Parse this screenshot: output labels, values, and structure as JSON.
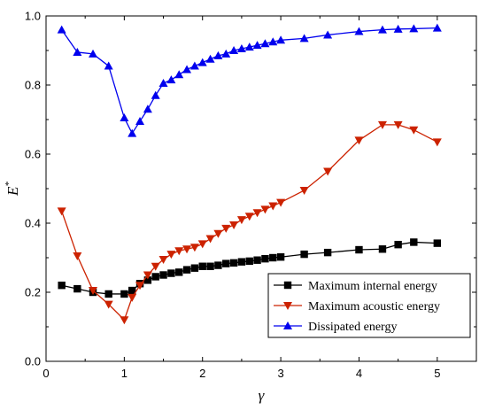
{
  "chart_data": {
    "type": "line",
    "title": "",
    "xlabel": "γ",
    "ylabel": "E",
    "ylabel_superscript": "*",
    "xlim": [
      0,
      5.5
    ],
    "ylim": [
      0,
      1.0
    ],
    "xticks": [
      0,
      1,
      2,
      3,
      4,
      5
    ],
    "yticks": [
      0.0,
      0.2,
      0.4,
      0.6,
      0.8,
      1.0
    ],
    "xtick_labels": [
      "0",
      "1",
      "2",
      "3",
      "4",
      "5"
    ],
    "ytick_labels": [
      "0.0",
      "0.2",
      "0.4",
      "0.6",
      "0.8",
      "1.0"
    ],
    "grid": false,
    "legend_position": "bottom-right",
    "series": [
      {
        "name": "Maximum internal energy",
        "color": "#000000",
        "marker": "square",
        "x": [
          0.2,
          0.4,
          0.6,
          0.8,
          1.0,
          1.1,
          1.2,
          1.3,
          1.4,
          1.5,
          1.6,
          1.7,
          1.8,
          1.9,
          2.0,
          2.1,
          2.2,
          2.3,
          2.4,
          2.5,
          2.6,
          2.7,
          2.8,
          2.9,
          3.0,
          3.3,
          3.6,
          4.0,
          4.3,
          4.5,
          4.7,
          5.0
        ],
        "y": [
          0.22,
          0.21,
          0.2,
          0.195,
          0.195,
          0.205,
          0.225,
          0.235,
          0.245,
          0.25,
          0.255,
          0.258,
          0.265,
          0.27,
          0.275,
          0.275,
          0.278,
          0.283,
          0.285,
          0.288,
          0.29,
          0.293,
          0.297,
          0.3,
          0.302,
          0.31,
          0.315,
          0.323,
          0.325,
          0.338,
          0.345,
          0.342
        ]
      },
      {
        "name": "Maximum acoustic energy",
        "color": "#cc2200",
        "marker": "triangle-down",
        "x": [
          0.2,
          0.4,
          0.6,
          0.8,
          1.0,
          1.1,
          1.2,
          1.3,
          1.4,
          1.5,
          1.6,
          1.7,
          1.8,
          1.9,
          2.0,
          2.1,
          2.2,
          2.3,
          2.4,
          2.5,
          2.6,
          2.7,
          2.8,
          2.9,
          3.0,
          3.3,
          3.6,
          4.0,
          4.3,
          4.5,
          4.7,
          5.0
        ],
        "y": [
          0.435,
          0.305,
          0.205,
          0.165,
          0.12,
          0.185,
          0.22,
          0.25,
          0.275,
          0.295,
          0.31,
          0.32,
          0.325,
          0.33,
          0.34,
          0.355,
          0.37,
          0.385,
          0.395,
          0.41,
          0.42,
          0.43,
          0.44,
          0.45,
          0.46,
          0.495,
          0.55,
          0.64,
          0.685,
          0.685,
          0.67,
          0.635
        ]
      },
      {
        "name": "Dissipated energy",
        "color": "#0000ee",
        "marker": "triangle-up",
        "x": [
          0.2,
          0.4,
          0.6,
          0.8,
          1.0,
          1.1,
          1.2,
          1.3,
          1.4,
          1.5,
          1.6,
          1.7,
          1.8,
          1.9,
          2.0,
          2.1,
          2.2,
          2.3,
          2.4,
          2.5,
          2.6,
          2.7,
          2.8,
          2.9,
          3.0,
          3.3,
          3.6,
          4.0,
          4.3,
          4.5,
          4.7,
          5.0
        ],
        "y": [
          0.96,
          0.895,
          0.89,
          0.855,
          0.705,
          0.66,
          0.695,
          0.73,
          0.77,
          0.805,
          0.815,
          0.83,
          0.845,
          0.855,
          0.865,
          0.875,
          0.885,
          0.89,
          0.9,
          0.905,
          0.91,
          0.915,
          0.92,
          0.925,
          0.93,
          0.935,
          0.945,
          0.955,
          0.96,
          0.962,
          0.963,
          0.965
        ]
      }
    ]
  }
}
